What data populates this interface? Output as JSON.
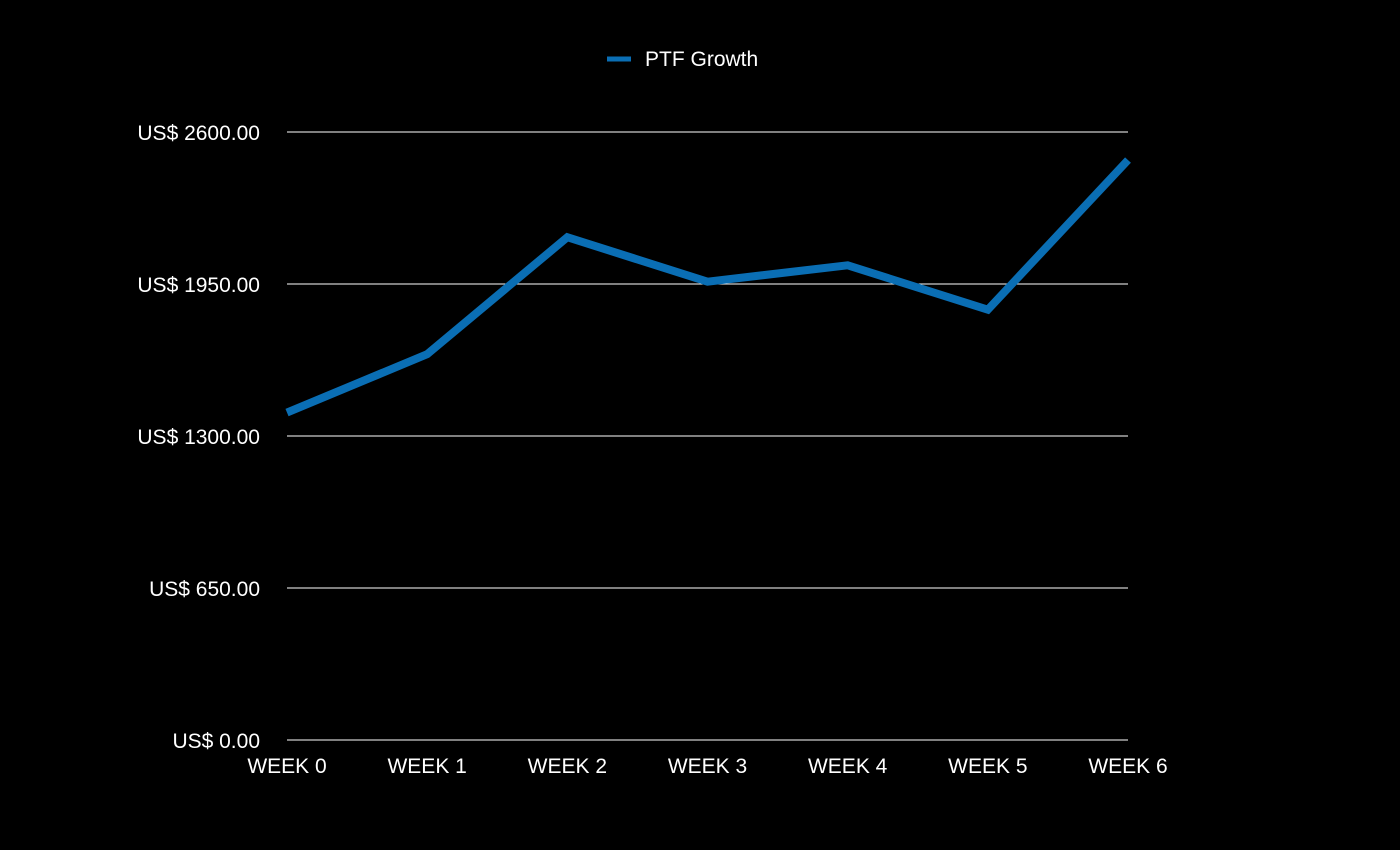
{
  "chart_data": {
    "type": "line",
    "title": "",
    "xlabel": "",
    "ylabel": "",
    "categories": [
      "WEEK 0",
      "WEEK 1",
      "WEEK 2",
      "WEEK 3",
      "WEEK 4",
      "WEEK 5",
      "WEEK 6"
    ],
    "series": [
      {
        "name": "PTF Growth",
        "color": "#0a6eb4",
        "values": [
          1400,
          1650,
          2150,
          1960,
          2030,
          1840,
          2480
        ]
      }
    ],
    "ylim": [
      0,
      2600
    ],
    "yticks": [
      0,
      650,
      1300,
      1950,
      2600
    ],
    "ytick_labels": [
      "US$ 0.00",
      "US$ 650.00",
      "US$ 1300.00",
      "US$ 1950.00",
      "US$ 2600.00"
    ],
    "grid": true,
    "legend": "top-center",
    "background": "#000000",
    "text_color": "#ffffff"
  }
}
